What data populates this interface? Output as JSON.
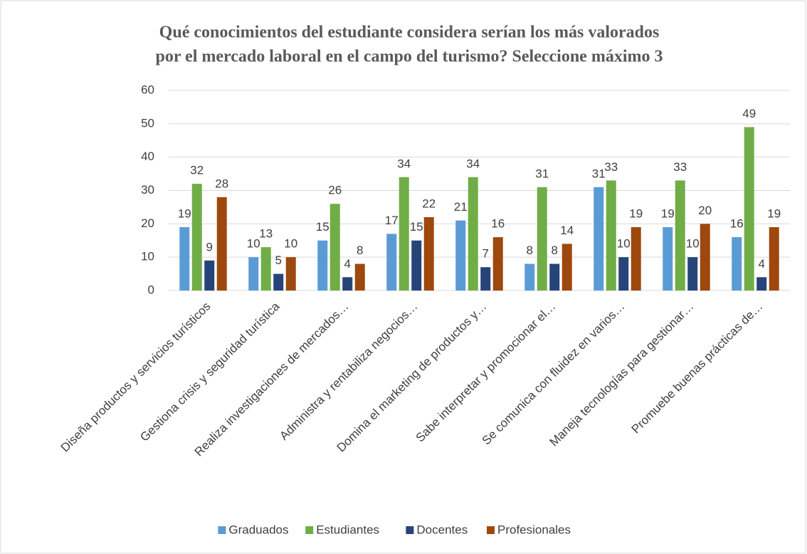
{
  "chart_data": {
    "type": "bar",
    "title": [
      "Qué conocimientos del estudiante considera serían los más valorados",
      "por el mercado laboral en el campo del turismo? Seleccione máximo 3"
    ],
    "categories": [
      "Diseña productos y servicios turísticos",
      "Gestiona crisis y seguridad turística",
      "Realiza investigaciones de mercados…",
      "Administra y rentabiliza negocios…",
      "Domina el marketing de productos y…",
      "Sabe interpretar y promocionar el…",
      "Se comunica con fluidez en varios…",
      "Maneja tecnologías para gestionar…",
      "Promuebe buenas prácticas de…"
    ],
    "series": [
      {
        "name": "Graduados",
        "color": "#5b9bd5",
        "values": [
          19,
          10,
          15,
          17,
          21,
          8,
          31,
          19,
          16
        ]
      },
      {
        "name": "Estudiantes",
        "color": "#70ad47",
        "values": [
          32,
          13,
          26,
          34,
          34,
          31,
          33,
          33,
          49
        ]
      },
      {
        "name": "Docentes",
        "color": "#264478",
        "values": [
          9,
          5,
          4,
          15,
          7,
          8,
          10,
          10,
          4
        ]
      },
      {
        "name": "Profesionales",
        "color": "#9e480e",
        "values": [
          28,
          10,
          8,
          22,
          16,
          14,
          19,
          20,
          19
        ]
      }
    ],
    "ylim": [
      0,
      60
    ],
    "yticks": [
      0,
      10,
      20,
      30,
      40,
      50,
      60
    ],
    "grid": true,
    "legend": "bottom"
  }
}
